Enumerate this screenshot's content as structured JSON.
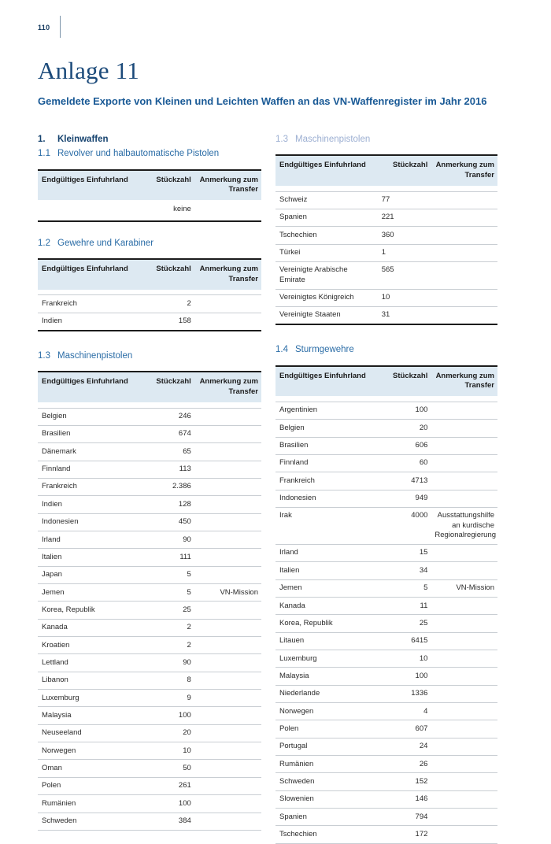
{
  "page": {
    "number": "110"
  },
  "header": {
    "title": "Anlage 11",
    "subtitle": "Gemeldete Exporte von Kleinen und Leichten Waffen an das VN-Waffenregister im Jahr 2016"
  },
  "columns_headers": {
    "country": "Endgültiges Einfuhrland",
    "count": "Stückzahl",
    "note": "Anmerkung zum Transfer"
  },
  "sections": {
    "s1": {
      "number": "1.",
      "label": "Kleinwaffen"
    },
    "s11": {
      "number": "1.1",
      "label": "Revolver und halbautomatische Pistolen"
    },
    "s12": {
      "number": "1.2",
      "label": "Gewehre und Karabiner"
    },
    "s13": {
      "number": "1.3",
      "label": "Maschinenpistolen"
    },
    "s13cont": {
      "number": "1.3",
      "label": "Maschinenpistolen"
    },
    "s14": {
      "number": "1.4",
      "label": "Sturmgewehre"
    }
  },
  "tables": {
    "revolver": {
      "empty_text": "keine",
      "rows": []
    },
    "gewehre": {
      "rows": [
        {
          "country": "Frankreich",
          "count": "2",
          "note": ""
        },
        {
          "country": "Indien",
          "count": "158",
          "note": ""
        }
      ]
    },
    "maschinenpistolen_left": {
      "rows": [
        {
          "country": "Belgien",
          "count": "246",
          "note": ""
        },
        {
          "country": "Brasilien",
          "count": "674",
          "note": ""
        },
        {
          "country": "Dänemark",
          "count": "65",
          "note": ""
        },
        {
          "country": "Finnland",
          "count": "113",
          "note": ""
        },
        {
          "country": "Frankreich",
          "count": "2.386",
          "note": ""
        },
        {
          "country": "Indien",
          "count": "128",
          "note": ""
        },
        {
          "country": "Indonesien",
          "count": "450",
          "note": ""
        },
        {
          "country": "Irland",
          "count": "90",
          "note": ""
        },
        {
          "country": "Italien",
          "count": "111",
          "note": ""
        },
        {
          "country": "Japan",
          "count": "5",
          "note": ""
        },
        {
          "country": "Jemen",
          "count": "5",
          "note": "VN-Mission"
        },
        {
          "country": "Korea, Republik",
          "count": "25",
          "note": ""
        },
        {
          "country": "Kanada",
          "count": "2",
          "note": ""
        },
        {
          "country": "Kroatien",
          "count": "2",
          "note": ""
        },
        {
          "country": "Lettland",
          "count": "90",
          "note": ""
        },
        {
          "country": "Libanon",
          "count": "8",
          "note": ""
        },
        {
          "country": "Luxemburg",
          "count": "9",
          "note": ""
        },
        {
          "country": "Malaysia",
          "count": "100",
          "note": ""
        },
        {
          "country": "Neuseeland",
          "count": "20",
          "note": ""
        },
        {
          "country": "Norwegen",
          "count": "10",
          "note": ""
        },
        {
          "country": "Oman",
          "count": "50",
          "note": ""
        },
        {
          "country": "Polen",
          "count": "261",
          "note": ""
        },
        {
          "country": "Rumänien",
          "count": "100",
          "note": ""
        },
        {
          "country": "Schweden",
          "count": "384",
          "note": ""
        }
      ]
    },
    "maschinenpistolen_right": {
      "rows": [
        {
          "country": "Schweiz",
          "count": "77",
          "note": ""
        },
        {
          "country": "Spanien",
          "count": "221",
          "note": ""
        },
        {
          "country": "Tschechien",
          "count": "360",
          "note": ""
        },
        {
          "country": "Türkei",
          "count": "1",
          "note": ""
        },
        {
          "country": "Vereinigte Arabische Emirate",
          "count": "565",
          "note": ""
        },
        {
          "country": "Vereinigtes Königreich",
          "count": "10",
          "note": ""
        },
        {
          "country": "Vereinigte Staaten",
          "count": "31",
          "note": ""
        }
      ]
    },
    "sturmgewehre": {
      "rows": [
        {
          "country": "Argentinien",
          "count": "100",
          "note": ""
        },
        {
          "country": "Belgien",
          "count": "20",
          "note": ""
        },
        {
          "country": "Brasilien",
          "count": "606",
          "note": ""
        },
        {
          "country": "Finnland",
          "count": "60",
          "note": ""
        },
        {
          "country": "Frankreich",
          "count": "4713",
          "note": ""
        },
        {
          "country": "Indonesien",
          "count": "949",
          "note": ""
        },
        {
          "country": "Irak",
          "count": "4000",
          "note": "Ausstattungshilfe an kurdische Regionalregierung"
        },
        {
          "country": "Irland",
          "count": "15",
          "note": ""
        },
        {
          "country": "Italien",
          "count": "34",
          "note": ""
        },
        {
          "country": "Jemen",
          "count": "5",
          "note": "VN-Mission"
        },
        {
          "country": "Kanada",
          "count": "11",
          "note": ""
        },
        {
          "country": "Korea, Republik",
          "count": "25",
          "note": ""
        },
        {
          "country": "Litauen",
          "count": "6415",
          "note": ""
        },
        {
          "country": "Luxemburg",
          "count": "10",
          "note": ""
        },
        {
          "country": "Malaysia",
          "count": "100",
          "note": ""
        },
        {
          "country": "Niederlande",
          "count": "1336",
          "note": ""
        },
        {
          "country": "Norwegen",
          "count": "4",
          "note": ""
        },
        {
          "country": "Polen",
          "count": "607",
          "note": ""
        },
        {
          "country": "Portugal",
          "count": "24",
          "note": ""
        },
        {
          "country": "Rumänien",
          "count": "26",
          "note": ""
        },
        {
          "country": "Schweden",
          "count": "152",
          "note": ""
        },
        {
          "country": "Slowenien",
          "count": "146",
          "note": ""
        },
        {
          "country": "Spanien",
          "count": "794",
          "note": ""
        },
        {
          "country": "Tschechien",
          "count": "172",
          "note": ""
        }
      ]
    }
  },
  "colors": {
    "title_navy": "#1b4a7a",
    "subtitle_blue": "#1a5a96",
    "section_blue": "#2a6ca6",
    "section_faded_blue": "#9cafd2",
    "table_header_bg": "#dde9f2",
    "table_rule_dark": "#1c1c1c",
    "table_rule_light": "#c9ced3"
  }
}
